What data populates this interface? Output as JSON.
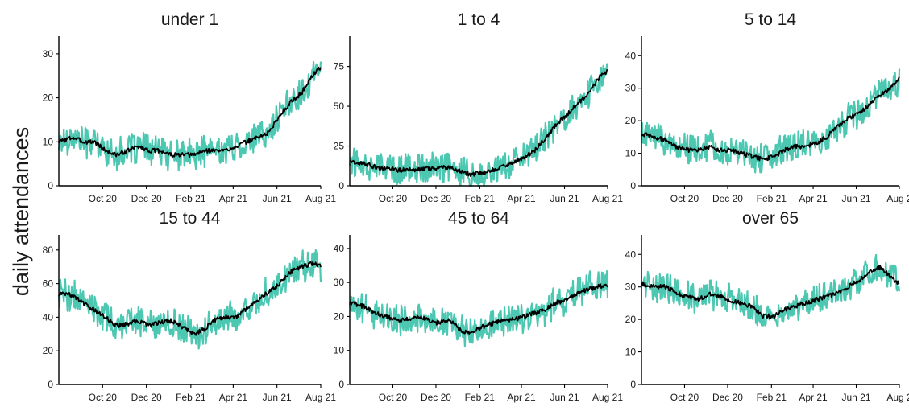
{
  "ylabel": "daily attendances",
  "colors": {
    "raw": "#4cc8b2",
    "smooth": "#000000"
  },
  "chart_data": [
    {
      "type": "line",
      "title": "under 1",
      "x_range": [
        "2020-08-01",
        "2021-08-01"
      ],
      "x_ticks": [
        {
          "date": "2020-10-01",
          "label": "Oct 20"
        },
        {
          "date": "2020-12-01",
          "label": "Dec 20"
        },
        {
          "date": "2021-02-01",
          "label": "Feb 21"
        },
        {
          "date": "2021-04-01",
          "label": "Apr 21"
        },
        {
          "date": "2021-06-01",
          "label": "Jun 21"
        },
        {
          "date": "2021-08-01",
          "label": "Aug 21"
        }
      ],
      "y_ticks": [
        0,
        10,
        20,
        30
      ],
      "ylim": [
        0,
        34
      ],
      "series": [
        {
          "values": [
            [
              "2020-08-01",
              10
            ],
            [
              "2020-08-20",
              11
            ],
            [
              "2020-09-05",
              10
            ],
            [
              "2020-09-20",
              10
            ],
            [
              "2020-10-05",
              8
            ],
            [
              "2020-10-20",
              7
            ],
            [
              "2020-11-05",
              8
            ],
            [
              "2020-11-20",
              9
            ],
            [
              "2020-12-05",
              8
            ],
            [
              "2020-12-20",
              8
            ],
            [
              "2021-01-05",
              7
            ],
            [
              "2021-01-20",
              7
            ],
            [
              "2021-02-05",
              7
            ],
            [
              "2021-02-20",
              8
            ],
            [
              "2021-03-05",
              8
            ],
            [
              "2021-03-20",
              8
            ],
            [
              "2021-04-05",
              9
            ],
            [
              "2021-04-20",
              10
            ],
            [
              "2021-05-05",
              11
            ],
            [
              "2021-05-20",
              12
            ],
            [
              "2021-06-05",
              16
            ],
            [
              "2021-06-20",
              19
            ],
            [
              "2021-07-05",
              21
            ],
            [
              "2021-07-20",
              25
            ],
            [
              "2021-08-01",
              27
            ]
          ]
        }
      ]
    },
    {
      "type": "line",
      "title": "1 to 4",
      "x_range": [
        "2020-08-01",
        "2021-08-01"
      ],
      "x_ticks": [
        {
          "date": "2020-10-01",
          "label": "Oct 20"
        },
        {
          "date": "2020-12-01",
          "label": "Dec 20"
        },
        {
          "date": "2021-02-01",
          "label": "Feb 21"
        },
        {
          "date": "2021-04-01",
          "label": "Apr 21"
        },
        {
          "date": "2021-06-01",
          "label": "Jun 21"
        },
        {
          "date": "2021-08-01",
          "label": "Aug 21"
        }
      ],
      "y_ticks": [
        0,
        25,
        50,
        75
      ],
      "ylim": [
        0,
        94
      ],
      "series": [
        {
          "values": [
            [
              "2020-08-01",
              15
            ],
            [
              "2020-08-20",
              14
            ],
            [
              "2020-09-05",
              12
            ],
            [
              "2020-09-20",
              11
            ],
            [
              "2020-10-05",
              10
            ],
            [
              "2020-10-20",
              10
            ],
            [
              "2020-11-05",
              10
            ],
            [
              "2020-11-20",
              11
            ],
            [
              "2020-12-05",
              11
            ],
            [
              "2020-12-20",
              12
            ],
            [
              "2021-01-05",
              9
            ],
            [
              "2021-01-20",
              7
            ],
            [
              "2021-02-05",
              8
            ],
            [
              "2021-02-20",
              10
            ],
            [
              "2021-03-05",
              12
            ],
            [
              "2021-03-20",
              15
            ],
            [
              "2021-04-05",
              18
            ],
            [
              "2021-04-20",
              22
            ],
            [
              "2021-05-05",
              30
            ],
            [
              "2021-05-20",
              38
            ],
            [
              "2021-06-05",
              45
            ],
            [
              "2021-06-20",
              52
            ],
            [
              "2021-07-05",
              58
            ],
            [
              "2021-07-20",
              68
            ],
            [
              "2021-08-01",
              72
            ]
          ]
        }
      ]
    },
    {
      "type": "line",
      "title": "5 to 14",
      "x_range": [
        "2020-08-01",
        "2021-08-01"
      ],
      "x_ticks": [
        {
          "date": "2020-10-01",
          "label": "Oct 20"
        },
        {
          "date": "2020-12-01",
          "label": "Dec 20"
        },
        {
          "date": "2021-02-01",
          "label": "Feb 21"
        },
        {
          "date": "2021-04-01",
          "label": "Apr 21"
        },
        {
          "date": "2021-06-01",
          "label": "Jun 21"
        },
        {
          "date": "2021-08-01",
          "label": "Aug 2"
        }
      ],
      "y_ticks": [
        0,
        10,
        20,
        30,
        40
      ],
      "ylim": [
        0,
        46
      ],
      "series": [
        {
          "values": [
            [
              "2020-08-01",
              16
            ],
            [
              "2020-08-20",
              15
            ],
            [
              "2020-09-05",
              14
            ],
            [
              "2020-09-20",
              12
            ],
            [
              "2020-10-05",
              11
            ],
            [
              "2020-10-20",
              11
            ],
            [
              "2020-11-05",
              12
            ],
            [
              "2020-11-20",
              11
            ],
            [
              "2020-12-05",
              11
            ],
            [
              "2020-12-20",
              10
            ],
            [
              "2021-01-05",
              9
            ],
            [
              "2021-01-20",
              8
            ],
            [
              "2021-02-05",
              9
            ],
            [
              "2021-02-20",
              11
            ],
            [
              "2021-03-05",
              12
            ],
            [
              "2021-03-20",
              12
            ],
            [
              "2021-04-05",
              13
            ],
            [
              "2021-04-20",
              15
            ],
            [
              "2021-05-05",
              18
            ],
            [
              "2021-05-20",
              21
            ],
            [
              "2021-06-05",
              22
            ],
            [
              "2021-06-20",
              25
            ],
            [
              "2021-07-05",
              28
            ],
            [
              "2021-07-20",
              30
            ],
            [
              "2021-08-01",
              33
            ]
          ]
        }
      ]
    },
    {
      "type": "line",
      "title": "15 to 44",
      "x_range": [
        "2020-08-01",
        "2021-08-01"
      ],
      "x_ticks": [
        {
          "date": "2020-10-01",
          "label": "Oct 20"
        },
        {
          "date": "2020-12-01",
          "label": "Dec 20"
        },
        {
          "date": "2021-02-01",
          "label": "Feb 21"
        },
        {
          "date": "2021-04-01",
          "label": "Apr 21"
        },
        {
          "date": "2021-06-01",
          "label": "Jun 21"
        },
        {
          "date": "2021-08-01",
          "label": "Aug 21"
        }
      ],
      "y_ticks": [
        0,
        20,
        40,
        60,
        80
      ],
      "ylim": [
        0,
        89
      ],
      "series": [
        {
          "values": [
            [
              "2020-08-01",
              54
            ],
            [
              "2020-08-20",
              53
            ],
            [
              "2020-09-05",
              48
            ],
            [
              "2020-09-20",
              44
            ],
            [
              "2020-10-05",
              40
            ],
            [
              "2020-10-20",
              35
            ],
            [
              "2020-11-05",
              36
            ],
            [
              "2020-11-20",
              38
            ],
            [
              "2020-12-05",
              35
            ],
            [
              "2020-12-20",
              37
            ],
            [
              "2021-01-05",
              38
            ],
            [
              "2021-01-20",
              34
            ],
            [
              "2021-02-05",
              30
            ],
            [
              "2021-02-20",
              33
            ],
            [
              "2021-03-05",
              38
            ],
            [
              "2021-03-20",
              40
            ],
            [
              "2021-04-05",
              40
            ],
            [
              "2021-04-20",
              45
            ],
            [
              "2021-05-05",
              50
            ],
            [
              "2021-05-20",
              55
            ],
            [
              "2021-06-05",
              60
            ],
            [
              "2021-06-20",
              67
            ],
            [
              "2021-07-05",
              70
            ],
            [
              "2021-07-20",
              72
            ],
            [
              "2021-08-01",
              71
            ]
          ]
        }
      ]
    },
    {
      "type": "line",
      "title": "45 to 64",
      "x_range": [
        "2020-08-01",
        "2021-08-01"
      ],
      "x_ticks": [
        {
          "date": "2020-10-01",
          "label": "Oct 20"
        },
        {
          "date": "2020-12-01",
          "label": "Dec 20"
        },
        {
          "date": "2021-02-01",
          "label": "Feb 21"
        },
        {
          "date": "2021-04-01",
          "label": "Apr 21"
        },
        {
          "date": "2021-06-01",
          "label": "Jun 21"
        },
        {
          "date": "2021-08-01",
          "label": "Aug 21"
        }
      ],
      "y_ticks": [
        0,
        10,
        20,
        30,
        40
      ],
      "ylim": [
        0,
        44
      ],
      "series": [
        {
          "values": [
            [
              "2020-08-01",
              24
            ],
            [
              "2020-08-20",
              23
            ],
            [
              "2020-09-05",
              21
            ],
            [
              "2020-09-20",
              20
            ],
            [
              "2020-10-05",
              19
            ],
            [
              "2020-10-20",
              19
            ],
            [
              "2020-11-05",
              20
            ],
            [
              "2020-11-20",
              19
            ],
            [
              "2020-12-05",
              18
            ],
            [
              "2020-12-20",
              19
            ],
            [
              "2021-01-05",
              16
            ],
            [
              "2021-01-20",
              15
            ],
            [
              "2021-02-05",
              17
            ],
            [
              "2021-02-20",
              18
            ],
            [
              "2021-03-05",
              19
            ],
            [
              "2021-03-20",
              19
            ],
            [
              "2021-04-05",
              20
            ],
            [
              "2021-04-20",
              21
            ],
            [
              "2021-05-05",
              22
            ],
            [
              "2021-05-20",
              24
            ],
            [
              "2021-06-05",
              25
            ],
            [
              "2021-06-20",
              27
            ],
            [
              "2021-07-05",
              28
            ],
            [
              "2021-07-20",
              29
            ],
            [
              "2021-08-01",
              29
            ]
          ]
        }
      ]
    },
    {
      "type": "line",
      "title": "over 65",
      "x_range": [
        "2020-08-01",
        "2021-08-01"
      ],
      "x_ticks": [
        {
          "date": "2020-10-01",
          "label": "Oct 20"
        },
        {
          "date": "2020-12-01",
          "label": "Dec 20"
        },
        {
          "date": "2021-02-01",
          "label": "Feb 21"
        },
        {
          "date": "2021-04-01",
          "label": "Apr 21"
        },
        {
          "date": "2021-06-01",
          "label": "Jun 21"
        },
        {
          "date": "2021-08-01",
          "label": "Aug 2"
        }
      ],
      "y_ticks": [
        0,
        10,
        20,
        30,
        40
      ],
      "ylim": [
        0,
        46
      ],
      "series": [
        {
          "values": [
            [
              "2020-08-01",
              31
            ],
            [
              "2020-08-20",
              30
            ],
            [
              "2020-09-05",
              30
            ],
            [
              "2020-09-20",
              28
            ],
            [
              "2020-10-05",
              27
            ],
            [
              "2020-10-20",
              26
            ],
            [
              "2020-11-05",
              28
            ],
            [
              "2020-11-20",
              27
            ],
            [
              "2020-12-05",
              26
            ],
            [
              "2020-12-20",
              25
            ],
            [
              "2021-01-05",
              24
            ],
            [
              "2021-01-20",
              21
            ],
            [
              "2021-02-05",
              21
            ],
            [
              "2021-02-20",
              23
            ],
            [
              "2021-03-05",
              24
            ],
            [
              "2021-03-20",
              25
            ],
            [
              "2021-04-05",
              26
            ],
            [
              "2021-04-20",
              27
            ],
            [
              "2021-05-05",
              28
            ],
            [
              "2021-05-20",
              30
            ],
            [
              "2021-06-05",
              32
            ],
            [
              "2021-06-20",
              35
            ],
            [
              "2021-07-05",
              36
            ],
            [
              "2021-07-20",
              33
            ],
            [
              "2021-08-01",
              31
            ]
          ]
        }
      ]
    }
  ]
}
